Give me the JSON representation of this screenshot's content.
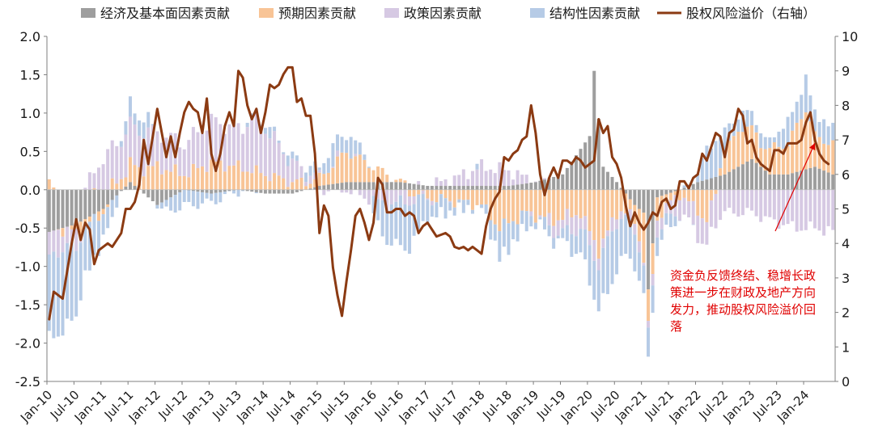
{
  "chart_data": {
    "type": "bar",
    "stacked": true,
    "legend_position": "top",
    "legend": [
      {
        "key": "econ",
        "label": "经济及基本面因素贡献"
      },
      {
        "key": "expect",
        "label": "预期因素贡献"
      },
      {
        "key": "policy",
        "label": "政策因素贡献"
      },
      {
        "key": "struct",
        "label": "结构性因素贡献"
      },
      {
        "key": "erp",
        "label": "股权风险溢价（右轴）"
      }
    ],
    "colors": {
      "econ": "#9e9e9e",
      "expect": "#f8c496",
      "policy": "#d6c9e3",
      "struct": "#b6cbe6",
      "erp": "#8b3a12",
      "annotation": "#e00000",
      "axis": "#7f7f7f"
    },
    "y_left": {
      "min": -2.5,
      "max": 2.0,
      "ticks": [
        "2.0",
        "1.5",
        "1.0",
        "0.5",
        "0.0",
        "-0.5",
        "-1.0",
        "-1.5",
        "-2.0",
        "-2.5"
      ]
    },
    "y_right": {
      "min": 0,
      "max": 10,
      "ticks": [
        "10",
        "9",
        "8",
        "7",
        "6",
        "5",
        "4",
        "3",
        "2",
        "1",
        "0"
      ]
    },
    "x_ticks": [
      "Jan-10",
      "Jul-10",
      "Jan-11",
      "Jul-11",
      "Jan-12",
      "Jul-12",
      "Jan-13",
      "Jul-13",
      "Jan-14",
      "Jul-14",
      "Jan-15",
      "Jul-15",
      "Jan-16",
      "Jul-16",
      "Jan-17",
      "Jul-17",
      "Jan-18",
      "Jul-18",
      "Jan-19",
      "Jul-19",
      "Jan-20",
      "Jul-20",
      "Jan-21",
      "Jul-21",
      "Jan-22",
      "Jul-22",
      "Jan-23",
      "Jul-23",
      "Jan-24"
    ],
    "months": 175,
    "bar_keypoints": {
      "econ": [
        [
          0,
          -0.55
        ],
        [
          6,
          -0.45
        ],
        [
          12,
          -0.25
        ],
        [
          18,
          0.1
        ],
        [
          24,
          -0.2
        ],
        [
          30,
          0.0
        ],
        [
          36,
          -0.05
        ],
        [
          42,
          0.0
        ],
        [
          48,
          -0.05
        ],
        [
          54,
          -0.05
        ],
        [
          60,
          0.05
        ],
        [
          66,
          0.1
        ],
        [
          72,
          0.1
        ],
        [
          78,
          0.1
        ],
        [
          84,
          0.05
        ],
        [
          90,
          0.05
        ],
        [
          96,
          0.05
        ],
        [
          102,
          0.05
        ],
        [
          108,
          0.1
        ],
        [
          114,
          0.2
        ],
        [
          120,
          0.7
        ],
        [
          121,
          1.55
        ],
        [
          123,
          0.3
        ],
        [
          126,
          0.1
        ],
        [
          130,
          -0.2
        ],
        [
          132,
          -0.3
        ],
        [
          133,
          -1.3
        ],
        [
          135,
          -0.1
        ],
        [
          140,
          0.0
        ],
        [
          144,
          0.1
        ],
        [
          150,
          0.2
        ],
        [
          156,
          0.4
        ],
        [
          160,
          0.2
        ],
        [
          164,
          0.2
        ],
        [
          170,
          0.3
        ],
        [
          174,
          0.2
        ]
      ],
      "expect": [
        [
          0,
          0.05
        ],
        [
          6,
          -0.1
        ],
        [
          12,
          -0.05
        ],
        [
          18,
          0.25
        ],
        [
          24,
          0.3
        ],
        [
          30,
          0.2
        ],
        [
          36,
          0.35
        ],
        [
          42,
          0.3
        ],
        [
          48,
          0.2
        ],
        [
          54,
          0.1
        ],
        [
          60,
          0.1
        ],
        [
          66,
          0.4
        ],
        [
          72,
          0.2
        ],
        [
          78,
          0.0
        ],
        [
          84,
          -0.1
        ],
        [
          90,
          -0.15
        ],
        [
          96,
          -0.2
        ],
        [
          100,
          -0.5
        ],
        [
          106,
          -0.3
        ],
        [
          112,
          -0.4
        ],
        [
          118,
          -0.3
        ],
        [
          122,
          -0.8
        ],
        [
          126,
          -0.3
        ],
        [
          130,
          -0.2
        ],
        [
          132,
          -0.6
        ],
        [
          136,
          -0.2
        ],
        [
          140,
          -0.05
        ],
        [
          146,
          -0.4
        ],
        [
          150,
          0.3
        ],
        [
          154,
          0.5
        ],
        [
          158,
          0.3
        ],
        [
          164,
          0.4
        ],
        [
          168,
          0.8
        ],
        [
          170,
          0.4
        ],
        [
          174,
          0.4
        ]
      ],
      "policy": [
        [
          0,
          -0.3
        ],
        [
          6,
          -0.2
        ],
        [
          10,
          0.25
        ],
        [
          14,
          0.5
        ],
        [
          20,
          0.5
        ],
        [
          24,
          0.45
        ],
        [
          30,
          0.4
        ],
        [
          36,
          0.55
        ],
        [
          42,
          0.5
        ],
        [
          46,
          0.7
        ],
        [
          48,
          0.6
        ],
        [
          54,
          0.25
        ],
        [
          60,
          0.0
        ],
        [
          66,
          0.0
        ],
        [
          70,
          -0.1
        ],
        [
          76,
          -0.2
        ],
        [
          84,
          0.0
        ],
        [
          90,
          0.1
        ],
        [
          96,
          0.25
        ],
        [
          102,
          0.2
        ],
        [
          108,
          0.0
        ],
        [
          114,
          -0.2
        ],
        [
          120,
          -0.2
        ],
        [
          126,
          -0.1
        ],
        [
          132,
          -0.1
        ],
        [
          138,
          -0.2
        ],
        [
          144,
          -0.3
        ],
        [
          148,
          -0.4
        ],
        [
          150,
          -0.3
        ],
        [
          156,
          -0.3
        ],
        [
          160,
          -0.4
        ],
        [
          166,
          -0.5
        ],
        [
          170,
          -0.5
        ],
        [
          174,
          -0.55
        ]
      ],
      "struct": [
        [
          0,
          -0.8
        ],
        [
          3,
          -0.95
        ],
        [
          6,
          -0.75
        ],
        [
          10,
          -0.4
        ],
        [
          14,
          -0.15
        ],
        [
          18,
          0.25
        ],
        [
          22,
          0.15
        ],
        [
          26,
          -0.15
        ],
        [
          30,
          -0.2
        ],
        [
          36,
          -0.1
        ],
        [
          42,
          0.0
        ],
        [
          48,
          0.1
        ],
        [
          54,
          0.1
        ],
        [
          60,
          0.15
        ],
        [
          64,
          0.3
        ],
        [
          66,
          0.25
        ],
        [
          70,
          0.2
        ],
        [
          72,
          -0.2
        ],
        [
          76,
          -0.45
        ],
        [
          80,
          -0.5
        ],
        [
          84,
          -0.2
        ],
        [
          90,
          -0.1
        ],
        [
          96,
          0.0
        ],
        [
          100,
          -0.3
        ],
        [
          104,
          -0.2
        ],
        [
          108,
          -0.1
        ],
        [
          114,
          -0.1
        ],
        [
          120,
          -0.4
        ],
        [
          124,
          -0.5
        ],
        [
          128,
          -0.4
        ],
        [
          132,
          -0.3
        ],
        [
          136,
          -0.2
        ],
        [
          140,
          -0.05
        ],
        [
          144,
          0.1
        ],
        [
          146,
          0.4
        ],
        [
          148,
          0.5
        ],
        [
          150,
          0.3
        ],
        [
          152,
          0.2
        ],
        [
          156,
          0.2
        ],
        [
          160,
          0.1
        ],
        [
          164,
          0.3
        ],
        [
          166,
          0.3
        ],
        [
          168,
          0.4
        ],
        [
          170,
          0.3
        ],
        [
          174,
          0.2
        ]
      ],
      "struct_neg_ext": [
        [
          0,
          -0.2
        ],
        [
          4,
          -0.15
        ],
        [
          6,
          -0.1
        ],
        [
          10,
          -0.1
        ],
        [
          14,
          -0.05
        ],
        [
          18,
          0.0
        ],
        [
          74,
          -0.05
        ],
        [
          76,
          -0.1
        ],
        [
          80,
          -0.1
        ],
        [
          84,
          -0.05
        ],
        [
          96,
          0.0
        ],
        [
          100,
          -0.1
        ],
        [
          104,
          -0.05
        ],
        [
          108,
          0.0
        ],
        [
          120,
          -0.05
        ],
        [
          124,
          -0.2
        ],
        [
          128,
          -0.1
        ],
        [
          132,
          -0.1
        ],
        [
          136,
          0.0
        ]
      ]
    },
    "erp_points": [
      [
        0,
        1.8
      ],
      [
        1,
        2.6
      ],
      [
        3,
        2.4
      ],
      [
        5,
        4.0
      ],
      [
        6,
        4.7
      ],
      [
        7,
        4.1
      ],
      [
        8,
        4.6
      ],
      [
        9,
        4.4
      ],
      [
        10,
        3.4
      ],
      [
        11,
        3.8
      ],
      [
        12,
        3.9
      ],
      [
        13,
        4.0
      ],
      [
        14,
        3.9
      ],
      [
        16,
        4.3
      ],
      [
        17,
        5.0
      ],
      [
        18,
        5.0
      ],
      [
        19,
        5.2
      ],
      [
        20,
        5.7
      ],
      [
        21,
        7.0
      ],
      [
        22,
        6.3
      ],
      [
        23,
        7.1
      ],
      [
        24,
        7.9
      ],
      [
        25,
        7.2
      ],
      [
        26,
        6.5
      ],
      [
        27,
        7.1
      ],
      [
        28,
        6.5
      ],
      [
        29,
        7.2
      ],
      [
        30,
        7.8
      ],
      [
        31,
        8.1
      ],
      [
        32,
        7.9
      ],
      [
        33,
        7.8
      ],
      [
        34,
        7.2
      ],
      [
        35,
        8.2
      ],
      [
        36,
        6.6
      ],
      [
        37,
        6.1
      ],
      [
        38,
        6.6
      ],
      [
        39,
        7.4
      ],
      [
        40,
        7.8
      ],
      [
        41,
        7.4
      ],
      [
        42,
        9.0
      ],
      [
        43,
        8.8
      ],
      [
        44,
        8.0
      ],
      [
        45,
        7.6
      ],
      [
        46,
        7.9
      ],
      [
        47,
        7.2
      ],
      [
        48,
        7.8
      ],
      [
        49,
        8.6
      ],
      [
        50,
        8.5
      ],
      [
        51,
        8.6
      ],
      [
        52,
        8.9
      ],
      [
        53,
        9.1
      ],
      [
        54,
        9.1
      ],
      [
        55,
        8.1
      ],
      [
        56,
        8.2
      ],
      [
        57,
        7.7
      ],
      [
        58,
        7.7
      ],
      [
        59,
        6.6
      ],
      [
        60,
        4.3
      ],
      [
        61,
        5.1
      ],
      [
        62,
        4.8
      ],
      [
        63,
        3.3
      ],
      [
        64,
        2.5
      ],
      [
        65,
        1.9
      ],
      [
        66,
        2.9
      ],
      [
        67,
        3.8
      ],
      [
        68,
        4.8
      ],
      [
        69,
        5.0
      ],
      [
        70,
        4.6
      ],
      [
        71,
        4.1
      ],
      [
        72,
        4.6
      ],
      [
        73,
        5.9
      ],
      [
        74,
        5.7
      ],
      [
        75,
        4.9
      ],
      [
        76,
        4.9
      ],
      [
        77,
        5.0
      ],
      [
        78,
        5.0
      ],
      [
        79,
        4.8
      ],
      [
        80,
        4.9
      ],
      [
        81,
        4.8
      ],
      [
        82,
        4.3
      ],
      [
        83,
        4.5
      ],
      [
        84,
        4.6
      ],
      [
        85,
        4.4
      ],
      [
        86,
        4.2
      ],
      [
        87,
        4.25
      ],
      [
        88,
        4.3
      ],
      [
        89,
        4.2
      ],
      [
        90,
        3.9
      ],
      [
        91,
        3.85
      ],
      [
        92,
        3.9
      ],
      [
        93,
        3.8
      ],
      [
        94,
        3.9
      ],
      [
        95,
        3.8
      ],
      [
        96,
        3.7
      ],
      [
        97,
        4.5
      ],
      [
        98,
        5.0
      ],
      [
        99,
        5.3
      ],
      [
        100,
        5.5
      ],
      [
        101,
        6.5
      ],
      [
        102,
        6.4
      ],
      [
        103,
        6.6
      ],
      [
        104,
        6.7
      ],
      [
        105,
        7.0
      ],
      [
        106,
        7.1
      ],
      [
        107,
        8.0
      ],
      [
        108,
        7.2
      ],
      [
        109,
        6.0
      ],
      [
        110,
        5.4
      ],
      [
        111,
        5.9
      ],
      [
        112,
        6.2
      ],
      [
        113,
        5.9
      ],
      [
        114,
        6.4
      ],
      [
        115,
        6.4
      ],
      [
        116,
        6.3
      ],
      [
        117,
        6.5
      ],
      [
        118,
        6.4
      ],
      [
        119,
        6.2
      ],
      [
        120,
        6.3
      ],
      [
        121,
        6.4
      ],
      [
        122,
        7.6
      ],
      [
        123,
        7.2
      ],
      [
        124,
        7.4
      ],
      [
        125,
        6.5
      ],
      [
        126,
        6.3
      ],
      [
        127,
        5.9
      ],
      [
        128,
        5.1
      ],
      [
        129,
        4.5
      ],
      [
        130,
        4.9
      ],
      [
        131,
        4.6
      ],
      [
        132,
        4.4
      ],
      [
        133,
        4.6
      ],
      [
        134,
        4.9
      ],
      [
        135,
        4.8
      ],
      [
        136,
        5.2
      ],
      [
        137,
        5.3
      ],
      [
        138,
        5.0
      ],
      [
        139,
        5.1
      ],
      [
        140,
        5.8
      ],
      [
        141,
        5.8
      ],
      [
        142,
        5.6
      ],
      [
        143,
        5.9
      ],
      [
        144,
        6.0
      ],
      [
        145,
        6.6
      ],
      [
        146,
        6.4
      ],
      [
        147,
        6.8
      ],
      [
        148,
        7.2
      ],
      [
        149,
        7.1
      ],
      [
        150,
        6.5
      ],
      [
        151,
        7.2
      ],
      [
        152,
        7.3
      ],
      [
        153,
        7.9
      ],
      [
        154,
        7.7
      ],
      [
        155,
        6.9
      ],
      [
        156,
        7.0
      ],
      [
        157,
        6.5
      ],
      [
        158,
        6.3
      ],
      [
        159,
        6.2
      ],
      [
        160,
        6.1
      ],
      [
        161,
        6.7
      ],
      [
        162,
        6.7
      ],
      [
        163,
        6.6
      ],
      [
        164,
        6.9
      ],
      [
        165,
        6.9
      ],
      [
        166,
        6.9
      ],
      [
        167,
        7.0
      ],
      [
        168,
        7.5
      ],
      [
        169,
        7.8
      ],
      [
        170,
        7.0
      ],
      [
        171,
        6.6
      ],
      [
        172,
        6.4
      ],
      [
        173,
        6.3
      ]
    ],
    "annotation": {
      "lines": [
        "资金负反馈终结、稳增长政",
        "策进一步在财政及地产方向",
        "发力，推动股权风险溢价回",
        "落"
      ],
      "arrow_target_month": 170
    }
  }
}
